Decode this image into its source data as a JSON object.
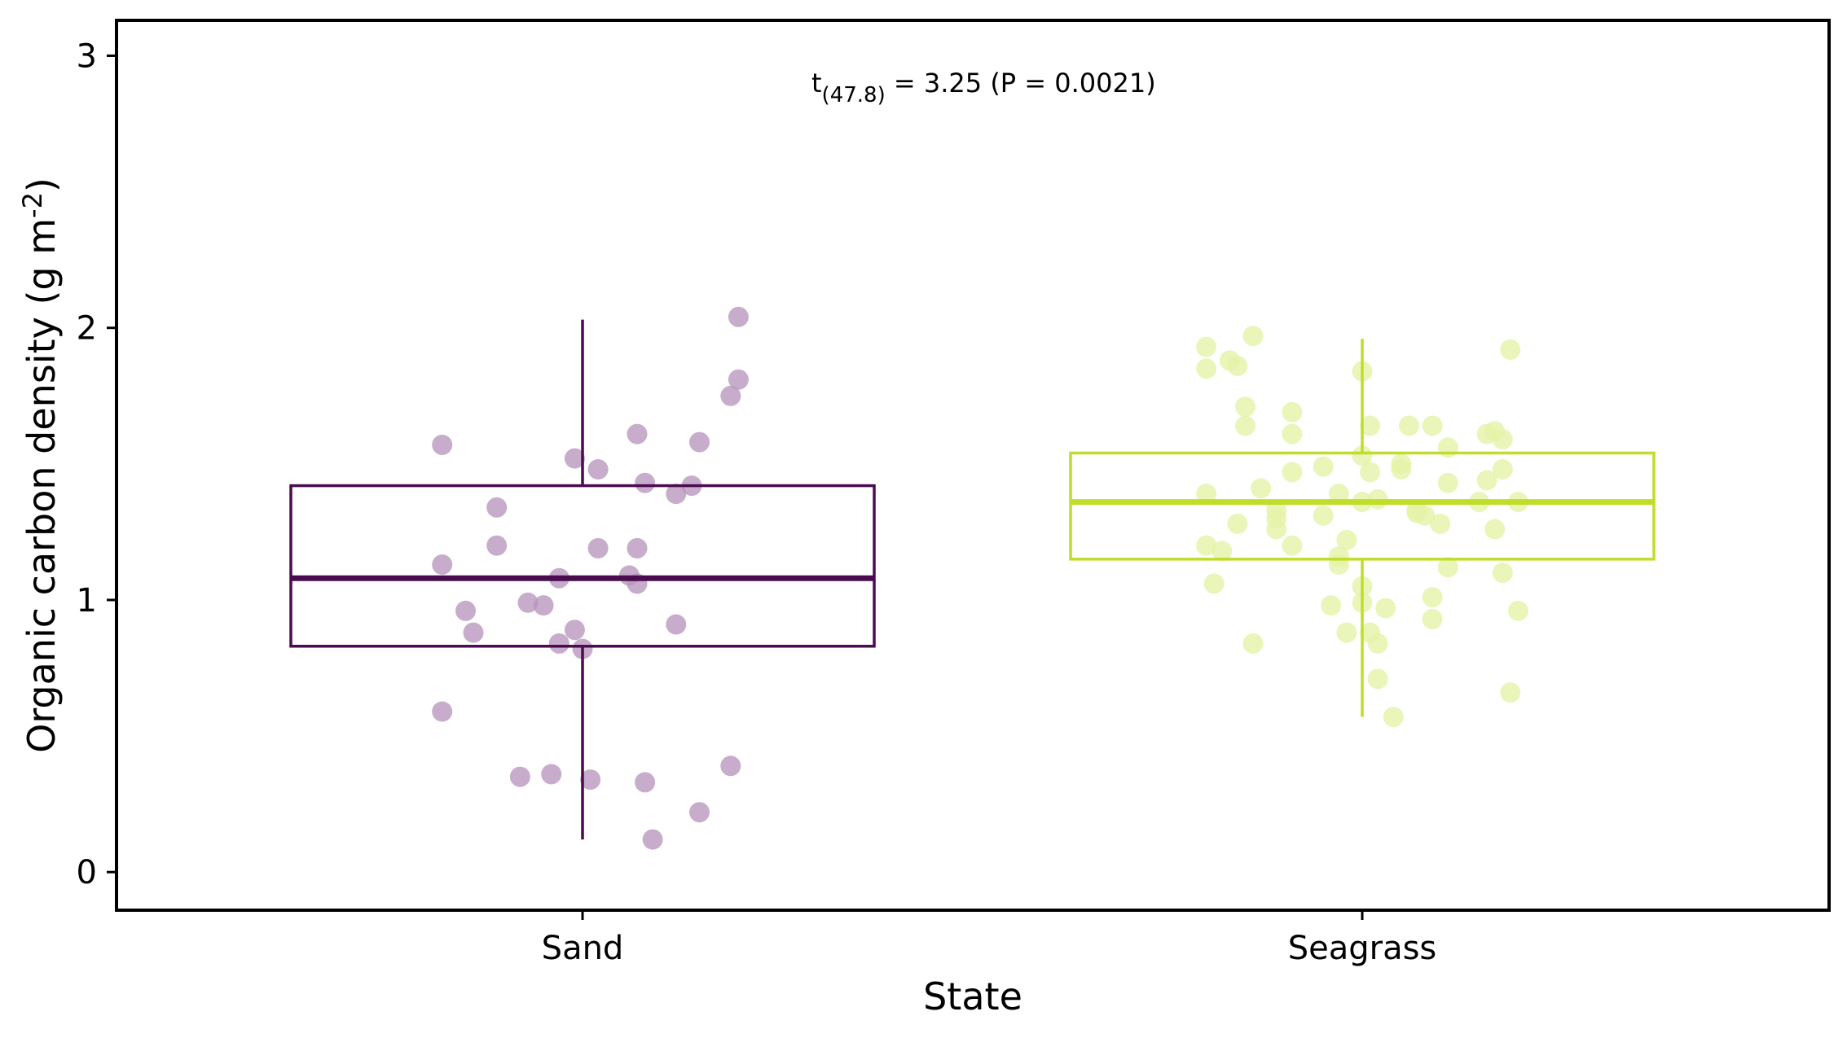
{
  "chart_data": {
    "type": "box",
    "xlabel": "State",
    "ylabel": {
      "main": "Organic carbon density (g m",
      "sup": "-2",
      "close": ")"
    },
    "categories": [
      "Sand",
      "Seagrass"
    ],
    "yticks": [
      "0",
      "1",
      "2",
      "3"
    ],
    "ylim": [
      -0.14,
      3.13
    ],
    "grid": false,
    "annotation": {
      "prefix": "t",
      "subscript": "(47.8)",
      "suffix": " = 3.25 (P = 0.0021)"
    },
    "series": [
      {
        "category": "Sand",
        "color": "#4a0c4f",
        "point_color": "#b796bd",
        "box": {
          "q1": 0.83,
          "median": 1.08,
          "q3": 1.42,
          "whisker_low": 0.12,
          "whisker_high": 2.03
        },
        "points": [
          {
            "dx": -0.18,
            "y": 1.57
          },
          {
            "dx": -0.18,
            "y": 1.13
          },
          {
            "dx": -0.15,
            "y": 0.96
          },
          {
            "dx": -0.14,
            "y": 0.88
          },
          {
            "dx": -0.18,
            "y": 0.59
          },
          {
            "dx": -0.11,
            "y": 1.34
          },
          {
            "dx": -0.11,
            "y": 1.2
          },
          {
            "dx": -0.07,
            "y": 0.99
          },
          {
            "dx": -0.05,
            "y": 0.98
          },
          {
            "dx": -0.03,
            "y": 1.08
          },
          {
            "dx": -0.03,
            "y": 0.84
          },
          {
            "dx": -0.08,
            "y": 0.35
          },
          {
            "dx": -0.04,
            "y": 0.36
          },
          {
            "dx": -0.01,
            "y": 1.52
          },
          {
            "dx": -0.01,
            "y": 0.89
          },
          {
            "dx": 0.0,
            "y": 0.82
          },
          {
            "dx": 0.02,
            "y": 1.48
          },
          {
            "dx": 0.02,
            "y": 1.19
          },
          {
            "dx": 0.01,
            "y": 0.34
          },
          {
            "dx": 0.07,
            "y": 1.61
          },
          {
            "dx": 0.08,
            "y": 1.43
          },
          {
            "dx": 0.06,
            "y": 1.09
          },
          {
            "dx": 0.07,
            "y": 1.06
          },
          {
            "dx": 0.07,
            "y": 1.19
          },
          {
            "dx": 0.08,
            "y": 0.33
          },
          {
            "dx": 0.09,
            "y": 0.12
          },
          {
            "dx": 0.12,
            "y": 1.39
          },
          {
            "dx": 0.12,
            "y": 0.91
          },
          {
            "dx": 0.14,
            "y": 1.42
          },
          {
            "dx": 0.15,
            "y": 1.58
          },
          {
            "dx": 0.15,
            "y": 0.22
          },
          {
            "dx": 0.19,
            "y": 1.75
          },
          {
            "dx": 0.2,
            "y": 1.81
          },
          {
            "dx": 0.2,
            "y": 2.04
          },
          {
            "dx": 0.19,
            "y": 0.39
          }
        ]
      },
      {
        "category": "Seagrass",
        "color": "#bfdd2a",
        "point_color": "#e4f2a6",
        "box": {
          "q1": 1.15,
          "median": 1.36,
          "q3": 1.54,
          "whisker_low": 0.57,
          "whisker_high": 1.96
        },
        "points": [
          {
            "dx": -0.2,
            "y": 1.93
          },
          {
            "dx": -0.2,
            "y": 1.85
          },
          {
            "dx": -0.17,
            "y": 1.88
          },
          {
            "dx": -0.16,
            "y": 1.86
          },
          {
            "dx": -0.14,
            "y": 1.97
          },
          {
            "dx": -0.15,
            "y": 1.71
          },
          {
            "dx": -0.15,
            "y": 1.64
          },
          {
            "dx": -0.09,
            "y": 1.69
          },
          {
            "dx": -0.09,
            "y": 1.61
          },
          {
            "dx": -0.2,
            "y": 1.39
          },
          {
            "dx": -0.2,
            "y": 1.2
          },
          {
            "dx": -0.18,
            "y": 1.18
          },
          {
            "dx": -0.19,
            "y": 1.06
          },
          {
            "dx": -0.16,
            "y": 1.28
          },
          {
            "dx": -0.13,
            "y": 1.41
          },
          {
            "dx": -0.11,
            "y": 1.33
          },
          {
            "dx": -0.11,
            "y": 1.3
          },
          {
            "dx": -0.11,
            "y": 1.26
          },
          {
            "dx": -0.09,
            "y": 1.47
          },
          {
            "dx": -0.09,
            "y": 1.2
          },
          {
            "dx": -0.14,
            "y": 0.84
          },
          {
            "dx": -0.05,
            "y": 1.49
          },
          {
            "dx": -0.05,
            "y": 1.31
          },
          {
            "dx": -0.03,
            "y": 1.39
          },
          {
            "dx": -0.03,
            "y": 1.16
          },
          {
            "dx": -0.03,
            "y": 1.13
          },
          {
            "dx": -0.04,
            "y": 0.98
          },
          {
            "dx": -0.02,
            "y": 0.88
          },
          {
            "dx": -0.02,
            "y": 1.22
          },
          {
            "dx": 0.0,
            "y": 1.84
          },
          {
            "dx": 0.01,
            "y": 1.64
          },
          {
            "dx": 0.0,
            "y": 1.53
          },
          {
            "dx": 0.01,
            "y": 1.47
          },
          {
            "dx": 0.02,
            "y": 1.37
          },
          {
            "dx": 0.0,
            "y": 1.36
          },
          {
            "dx": 0.0,
            "y": 1.05
          },
          {
            "dx": 0.0,
            "y": 0.99
          },
          {
            "dx": 0.01,
            "y": 0.88
          },
          {
            "dx": 0.02,
            "y": 0.84
          },
          {
            "dx": 0.02,
            "y": 0.71
          },
          {
            "dx": 0.04,
            "y": 0.57
          },
          {
            "dx": 0.03,
            "y": 0.97
          },
          {
            "dx": 0.05,
            "y": 1.5
          },
          {
            "dx": 0.05,
            "y": 1.48
          },
          {
            "dx": 0.06,
            "y": 1.64
          },
          {
            "dx": 0.07,
            "y": 1.33
          },
          {
            "dx": 0.07,
            "y": 1.32
          },
          {
            "dx": 0.08,
            "y": 1.31
          },
          {
            "dx": 0.09,
            "y": 1.64
          },
          {
            "dx": 0.09,
            "y": 1.01
          },
          {
            "dx": 0.09,
            "y": 0.93
          },
          {
            "dx": 0.1,
            "y": 1.28
          },
          {
            "dx": 0.11,
            "y": 1.56
          },
          {
            "dx": 0.11,
            "y": 1.43
          },
          {
            "dx": 0.11,
            "y": 1.12
          },
          {
            "dx": 0.15,
            "y": 1.36
          },
          {
            "dx": 0.16,
            "y": 1.44
          },
          {
            "dx": 0.16,
            "y": 1.61
          },
          {
            "dx": 0.17,
            "y": 1.62
          },
          {
            "dx": 0.17,
            "y": 1.26
          },
          {
            "dx": 0.18,
            "y": 1.59
          },
          {
            "dx": 0.18,
            "y": 1.48
          },
          {
            "dx": 0.18,
            "y": 1.1
          },
          {
            "dx": 0.19,
            "y": 0.66
          },
          {
            "dx": 0.19,
            "y": 1.92
          },
          {
            "dx": 0.2,
            "y": 1.36
          },
          {
            "dx": 0.2,
            "y": 0.96
          }
        ]
      }
    ]
  }
}
